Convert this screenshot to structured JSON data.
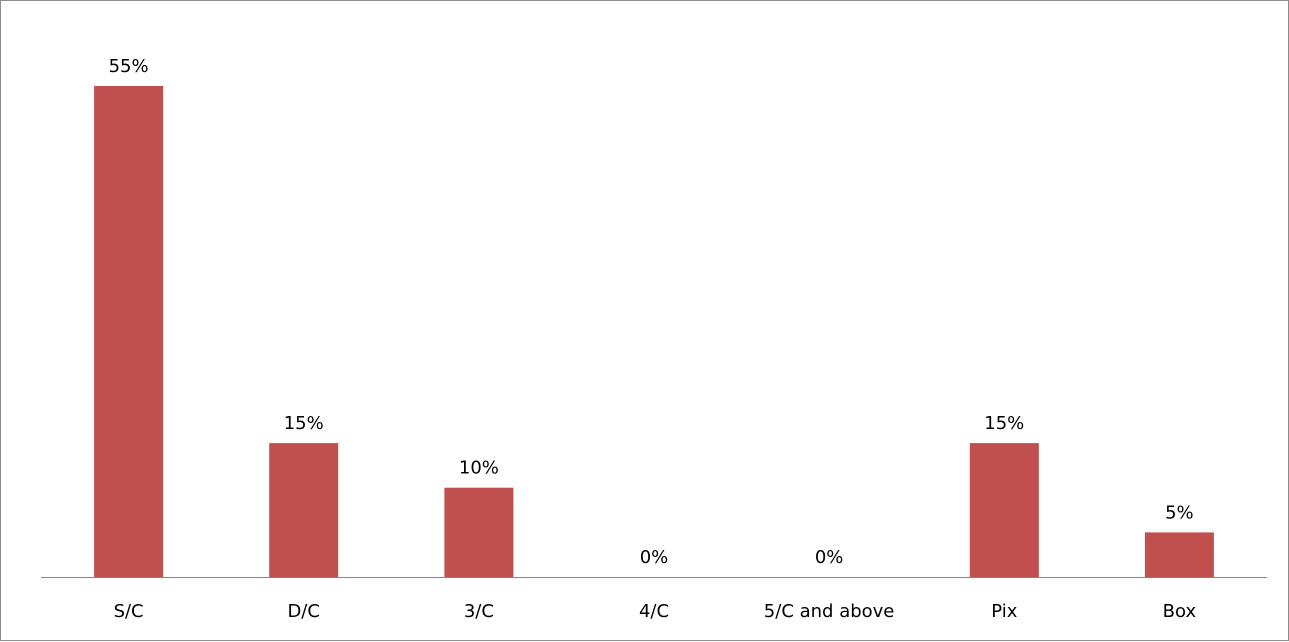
{
  "chart_data": {
    "type": "bar",
    "categories": [
      "S/C",
      "D/C",
      "3/C",
      "4/C",
      "5/C and above",
      "Pix",
      "Box"
    ],
    "values": [
      55,
      15,
      10,
      0,
      0,
      15,
      5
    ],
    "data_labels": [
      "55%",
      "15%",
      "10%",
      "0%",
      "0%",
      "15%",
      "5%"
    ],
    "ylim": [
      0,
      55
    ],
    "grid": false,
    "legend": "none",
    "bar_color": "#c0504d",
    "axis_color": "#868686"
  }
}
